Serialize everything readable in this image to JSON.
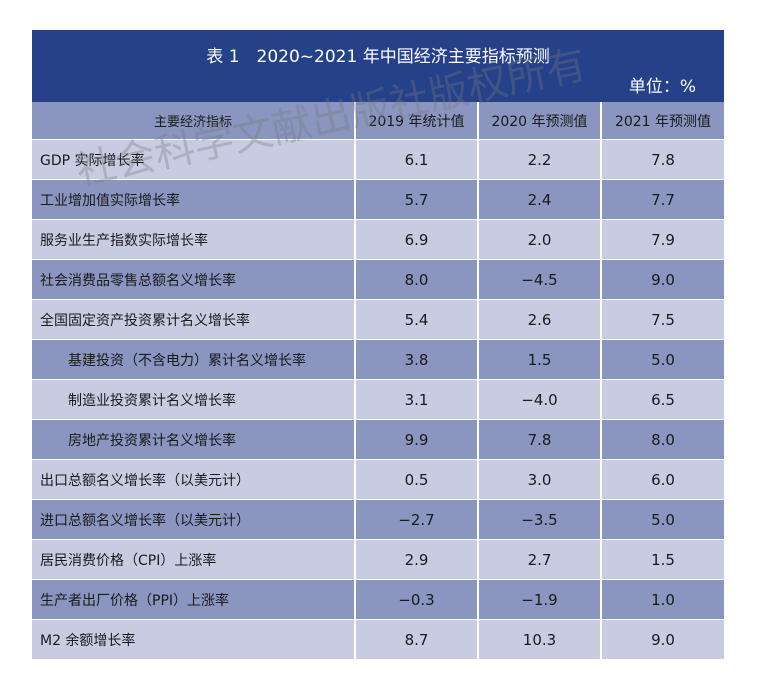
{
  "table": {
    "title": "表 1　2020~2021 年中国经济主要指标预测",
    "unit": "单位：%",
    "headers": [
      "主要经济指标",
      "2019 年统计值",
      "2020 年预测值",
      "2021 年预测值"
    ],
    "rows": [
      {
        "name": "GDP 实际增长率",
        "v2019": "6.1",
        "v2020": "2.2",
        "v2021": "7.8"
      },
      {
        "name": "工业增加值实际增长率",
        "v2019": "5.7",
        "v2020": "2.4",
        "v2021": "7.7"
      },
      {
        "name": "服务业生产指数实际增长率",
        "v2019": "6.9",
        "v2020": "2.0",
        "v2021": "7.9"
      },
      {
        "name": "社会消费品零售总额名义增长率",
        "v2019": "8.0",
        "v2020": "−4.5",
        "v2021": "9.0"
      },
      {
        "name": "全国固定资产投资累计名义增长率",
        "v2019": "5.4",
        "v2020": "2.6",
        "v2021": "7.5"
      },
      {
        "name": "基建投资（不含电力）累计名义增长率",
        "v2019": "3.8",
        "v2020": "1.5",
        "v2021": "5.0"
      },
      {
        "name": "制造业投资累计名义增长率",
        "v2019": "3.1",
        "v2020": "−4.0",
        "v2021": "6.5"
      },
      {
        "name": "房地产投资累计名义增长率",
        "v2019": "9.9",
        "v2020": "7.8",
        "v2021": "8.0"
      },
      {
        "name": "出口总额名义增长率（以美元计）",
        "v2019": "0.5",
        "v2020": "3.0",
        "v2021": "6.0"
      },
      {
        "name": "进口总额名义增长率（以美元计）",
        "v2019": "−2.7",
        "v2020": "−3.5",
        "v2021": "5.0"
      },
      {
        "name": "居民消费价格（CPI）上涨率",
        "v2019": "2.9",
        "v2020": "2.7",
        "v2021": "1.5"
      },
      {
        "name": "生产者出厂价格（PPI）上涨率",
        "v2019": "−0.3",
        "v2020": "−1.9",
        "v2021": "1.0"
      },
      {
        "name": "M2 余额增长率",
        "v2019": "8.7",
        "v2020": "10.3",
        "v2021": "9.0"
      }
    ]
  },
  "watermark": "社会科学文献出版社版权所有",
  "colors": {
    "title_bar": "#24418a",
    "header": "#8a95c0",
    "row_light": "#c8cce3",
    "row_dark": "#8a95c0"
  }
}
